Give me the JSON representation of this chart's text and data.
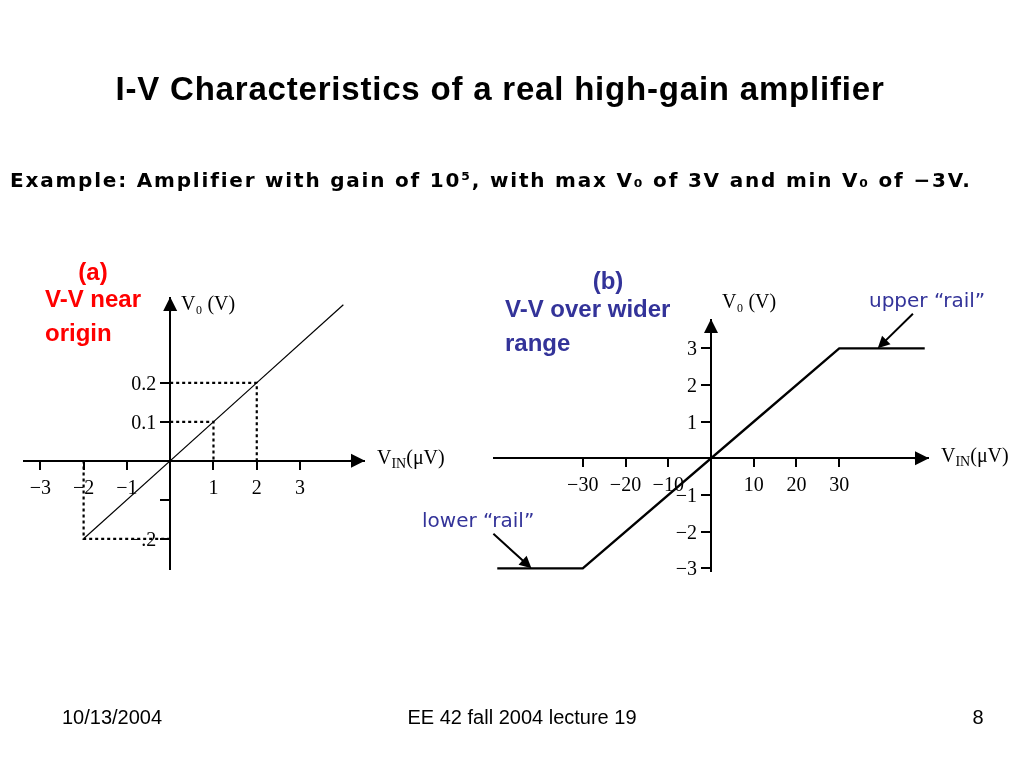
{
  "chart_data": [
    {
      "type": "line",
      "title": "I-V Characteristics of a real high-gain amplifier",
      "subtitle": "Example: Amplifier with gain of 10⁵, with max V₀ of 3V and min V₀ of −3V.",
      "xlabel": "V$_{IN}$(μV)",
      "ylabel": "V₀ (V)",
      "xlim": [
        -3.4,
        4.5
      ],
      "ylim": [
        -0.28,
        0.42
      ],
      "xticks": [
        {
          "value": -3,
          "label": "−3"
        },
        {
          "value": -2,
          "label": "−2"
        },
        {
          "value": -1,
          "label": "−1"
        },
        1,
        2,
        3
      ],
      "yticks": [
        {
          "value": -0.2,
          "label": "−.2"
        },
        {
          "value": -0.1,
          "label": null
        },
        0.1,
        0.2
      ],
      "series": [
        {
          "color": "#000000",
          "line_style": "dotted",
          "x": [
            0,
            2,
            2
          ],
          "values": [
            0.2,
            0.2,
            0
          ]
        },
        {
          "color": "#000000",
          "line_style": "dotted",
          "x": [
            0,
            1,
            1
          ],
          "values": [
            0.1,
            0.1,
            0
          ]
        },
        {
          "color": "#000000",
          "line_style": "dotted",
          "x": [
            0,
            -2,
            -2
          ],
          "values": [
            -0.2,
            -0.2,
            0
          ]
        },
        {
          "color": "#000000",
          "x": [
            -2,
            4
          ],
          "values": [
            -0.2,
            0.4
          ]
        }
      ],
      "annotations": [
        "(a)",
        "V-V near origin",
        "10/13/2004",
        "EE 42 fall 2004 lecture 19",
        "8"
      ]
    },
    {
      "type": "line",
      "xlabel": "V$_{IN}$(μV)",
      "ylabel": "V₀ (V)",
      "xlim": [
        -51,
        51
      ],
      "ylim": [
        -3.1,
        3.8
      ],
      "xticks": [
        {
          "value": -30,
          "label": "−30"
        },
        {
          "value": -20,
          "label": "−20"
        },
        {
          "value": -10,
          "label": "−10"
        },
        10,
        20,
        30
      ],
      "yticks": [
        {
          "value": -3,
          "label": "−3"
        },
        {
          "value": -2,
          "label": "−2"
        },
        {
          "value": -1,
          "label": "−1"
        },
        1,
        2,
        3
      ],
      "series": [
        {
          "color": "#000000",
          "x": [
            -50,
            -30,
            30,
            50
          ],
          "values": [
            -3,
            -3,
            3,
            3
          ]
        }
      ],
      "annotations": [
        "(b)",
        "V-V over wider range",
        {
          "text": "upper “rail”",
          "x": 39,
          "y": 3
        },
        {
          "text": "lower “rail”",
          "x": -42,
          "y": -3
        }
      ]
    }
  ]
}
